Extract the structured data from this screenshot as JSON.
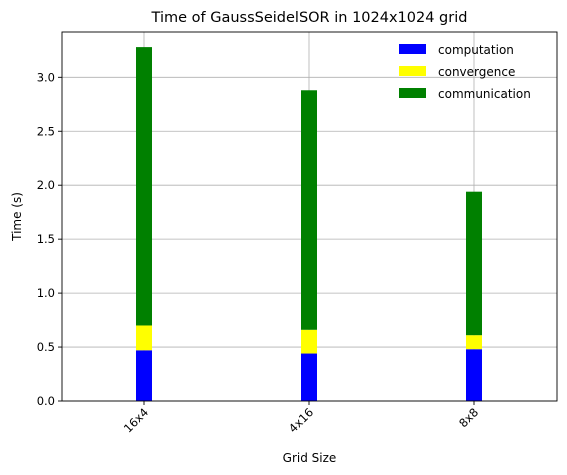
{
  "chart_data": {
    "type": "bar",
    "stacked": true,
    "title": "Time of GaussSeidelSOR in 1024x1024 grid",
    "xlabel": "Grid Size",
    "ylabel": "Time (s)",
    "categories": [
      "16x4",
      "4x16",
      "8x8"
    ],
    "series": [
      {
        "name": "computation",
        "color": "#0000ff",
        "values": [
          0.47,
          0.44,
          0.48
        ]
      },
      {
        "name": "convergence",
        "color": "#ffff00",
        "values": [
          0.23,
          0.22,
          0.13
        ]
      },
      {
        "name": "communication",
        "color": "#008000",
        "values": [
          2.58,
          2.22,
          1.33
        ]
      }
    ],
    "ylim": [
      0,
      3.42
    ],
    "yticks": [
      0.0,
      0.5,
      1.0,
      1.5,
      2.0,
      2.5,
      3.0
    ],
    "ytick_labels": [
      "0.0",
      "0.5",
      "1.0",
      "1.5",
      "2.0",
      "2.5",
      "3.0"
    ],
    "grid": true,
    "legend_position": "top-right",
    "x_tick_rotation": 45
  }
}
